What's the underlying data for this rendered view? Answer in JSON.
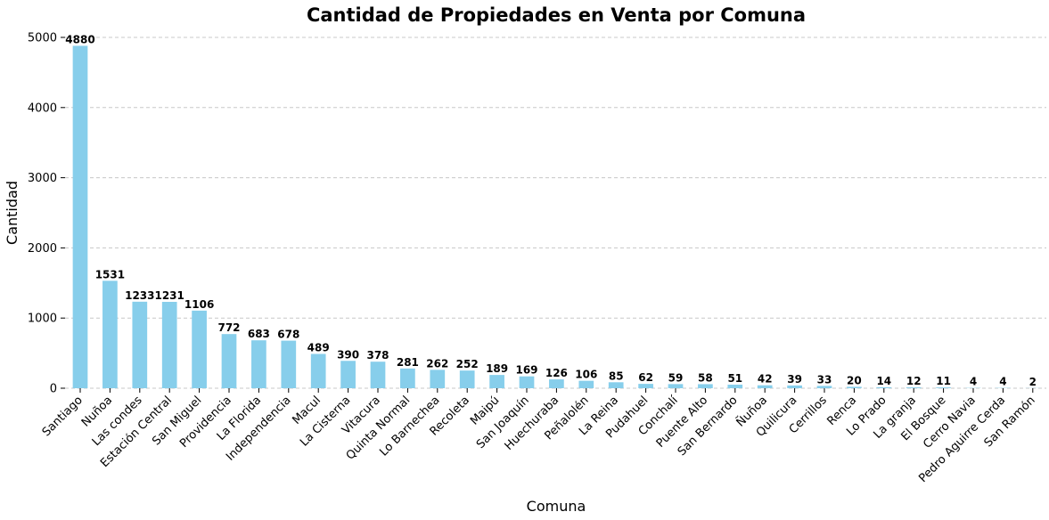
{
  "chart_data": {
    "type": "bar",
    "title": "Cantidad de Propiedades en Venta por Comuna",
    "xlabel": "Comuna",
    "ylabel": "Cantidad",
    "ylim": [
      0,
      5000
    ],
    "yticks": [
      0,
      1000,
      2000,
      3000,
      4000,
      5000
    ],
    "grid": true,
    "bar_color": "#87ceeb",
    "categories": [
      "Santiago",
      "Nuñoa",
      "Las condes",
      "Estación Central",
      "San Miguel",
      "Providencia",
      "La Florida",
      "Independencia",
      "Macul",
      "La Cisterna",
      "Vitacura",
      "Quinta Normal",
      "Lo Barnechea",
      "Recoleta",
      "Maipú",
      "San Joaquín",
      "Huechuraba",
      "Peñalolén",
      "La Reina",
      "Pudahuel",
      "Conchalí",
      "Puente Alto",
      "San Bernardo",
      "Ñuñoa",
      "Quilicura",
      "Cerrillos",
      "Renca",
      "Lo Prado",
      "La granja",
      "El Bosque",
      "Cerro Navia",
      "Pedro Aguirre Cerda",
      "San Ramón"
    ],
    "values": [
      4880,
      1531,
      1233,
      1231,
      1106,
      772,
      683,
      678,
      489,
      390,
      378,
      281,
      262,
      252,
      189,
      169,
      126,
      106,
      85,
      62,
      59,
      58,
      51,
      42,
      39,
      33,
      20,
      14,
      12,
      11,
      4,
      4,
      2
    ]
  }
}
